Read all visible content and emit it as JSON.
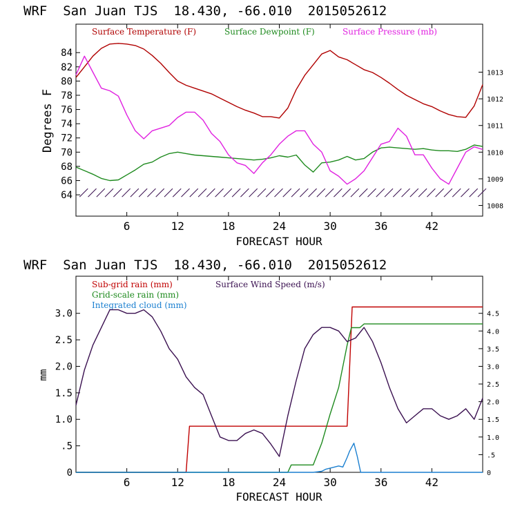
{
  "colors": {
    "axis": "#000000",
    "temperature": "#b00000",
    "dewpoint": "#1e8a1e",
    "pressure": "#e020e0",
    "wind_barbs": "#3a1050",
    "subgrid_rain": "#c00000",
    "gridscale_rain": "#1e8a1e",
    "integrated_cloud": "#1a7fd0",
    "wind_speed": "#3a1050"
  },
  "chart_data": [
    {
      "type": "line",
      "title": "WRF  San Juan TJS  18.430, -66.010  2015052612",
      "xlabel": "FORECAST HOUR",
      "ylabel": "Degrees F",
      "xlim": [
        0,
        48
      ],
      "ylim": [
        61,
        88
      ],
      "y2lim": [
        1007.6,
        1014.8
      ],
      "x_ticks": [
        "6",
        "12",
        "18",
        "24",
        "30",
        "36",
        "42"
      ],
      "x_tick_values": [
        6,
        12,
        18,
        24,
        30,
        36,
        42
      ],
      "y_ticks": [
        "64",
        "66",
        "68",
        "70",
        "72",
        "74",
        "76",
        "78",
        "80",
        "82",
        "84"
      ],
      "y_tick_values": [
        64,
        66,
        68,
        70,
        72,
        74,
        76,
        78,
        80,
        82,
        84
      ],
      "y2_ticks": [
        "1008",
        "1009",
        "1010",
        "1011",
        "1012",
        "1013"
      ],
      "y2_tick_values": [
        1008,
        1009,
        1010,
        1011,
        1012,
        1013
      ],
      "legend": [
        "Surface Temperature (F)",
        "Surface Dewpoint (F)",
        "Surface Pressure (mb)"
      ],
      "series": [
        {
          "name": "Surface Temperature (F)",
          "axis": "left",
          "x": [
            0,
            1,
            2,
            3,
            4,
            5,
            6,
            7,
            8,
            9,
            10,
            11,
            12,
            13,
            14,
            15,
            16,
            17,
            18,
            19,
            20,
            21,
            22,
            23,
            24,
            25,
            26,
            27,
            28,
            29,
            30,
            31,
            32,
            33,
            34,
            35,
            36,
            37,
            38,
            39,
            40,
            41,
            42,
            43,
            44,
            45,
            46,
            47,
            48
          ],
          "values": [
            80.5,
            82.0,
            83.5,
            84.6,
            85.2,
            85.3,
            85.2,
            85.0,
            84.5,
            83.6,
            82.5,
            81.2,
            80.0,
            79.4,
            79.0,
            78.6,
            78.2,
            77.6,
            77.0,
            76.4,
            75.9,
            75.5,
            75.0,
            75.0,
            74.8,
            76.2,
            78.8,
            80.8,
            82.3,
            83.8,
            84.3,
            83.4,
            83.0,
            82.3,
            81.6,
            81.2,
            80.5,
            79.7,
            78.8,
            78.0,
            77.4,
            76.8,
            76.4,
            75.8,
            75.3,
            75.0,
            74.9,
            76.5,
            79.5
          ]
        },
        {
          "name": "Surface Dewpoint (F)",
          "axis": "left",
          "x": [
            0,
            1,
            2,
            3,
            4,
            5,
            6,
            7,
            8,
            9,
            10,
            11,
            12,
            13,
            14,
            15,
            16,
            17,
            18,
            19,
            20,
            21,
            22,
            23,
            24,
            25,
            26,
            27,
            28,
            29,
            30,
            31,
            32,
            33,
            34,
            35,
            36,
            37,
            38,
            39,
            40,
            41,
            42,
            43,
            44,
            45,
            46,
            47,
            48
          ],
          "values": [
            67.9,
            67.4,
            66.9,
            66.3,
            66.0,
            66.1,
            66.8,
            67.5,
            68.3,
            68.6,
            69.3,
            69.8,
            70.0,
            69.8,
            69.6,
            69.5,
            69.4,
            69.3,
            69.2,
            69.1,
            69.0,
            68.9,
            69.0,
            69.2,
            69.5,
            69.3,
            69.6,
            68.2,
            67.2,
            68.5,
            68.6,
            68.9,
            69.4,
            68.9,
            69.1,
            70.0,
            70.6,
            70.7,
            70.6,
            70.5,
            70.4,
            70.5,
            70.3,
            70.2,
            70.2,
            70.1,
            70.4,
            71.0,
            70.8
          ]
        },
        {
          "name": "Surface Pressure (mb)",
          "axis": "right",
          "x": [
            0,
            1,
            2,
            3,
            4,
            5,
            6,
            7,
            8,
            9,
            10,
            11,
            12,
            13,
            14,
            15,
            16,
            17,
            18,
            19,
            20,
            21,
            22,
            23,
            24,
            25,
            26,
            27,
            28,
            29,
            30,
            31,
            32,
            33,
            34,
            35,
            36,
            37,
            38,
            39,
            40,
            41,
            42,
            43,
            44,
            45,
            46,
            47,
            48
          ],
          "values": [
            1012.9,
            1013.6,
            1013.0,
            1012.4,
            1012.3,
            1012.1,
            1011.4,
            1010.8,
            1010.5,
            1010.8,
            1010.9,
            1011.0,
            1011.3,
            1011.5,
            1011.5,
            1011.2,
            1010.7,
            1010.4,
            1009.9,
            1009.6,
            1009.5,
            1009.2,
            1009.6,
            1009.9,
            1010.3,
            1010.6,
            1010.8,
            1010.8,
            1010.3,
            1010.0,
            1009.3,
            1009.1,
            1008.8,
            1009.0,
            1009.3,
            1009.8,
            1010.3,
            1010.4,
            1010.9,
            1010.6,
            1009.9,
            1009.9,
            1009.4,
            1009.0,
            1008.8,
            1009.4,
            1010.0,
            1010.2,
            1010.1
          ]
        }
      ],
      "wind_barbs": {
        "x_start": 1,
        "x_end": 48,
        "y_value": 64
      }
    },
    {
      "type": "line",
      "title": "WRF  San Juan TJS  18.430, -66.010  2015052612",
      "xlabel": "FORECAST HOUR",
      "ylabel": "mm",
      "xlim": [
        0,
        48
      ],
      "ylim": [
        0,
        3.7
      ],
      "y2lim": [
        0,
        5.55
      ],
      "x_ticks": [
        "6",
        "12",
        "18",
        "24",
        "30",
        "36",
        "42"
      ],
      "x_tick_values": [
        6,
        12,
        18,
        24,
        30,
        36,
        42
      ],
      "y_ticks": [
        "0",
        ".5",
        "1.0",
        "1.5",
        "2.0",
        "2.5",
        "3.0"
      ],
      "y_tick_values": [
        0,
        0.5,
        1.0,
        1.5,
        2.0,
        2.5,
        3.0
      ],
      "y2_ticks": [
        "0",
        ".5",
        "1.0",
        "1.5",
        "2.0",
        "2.5",
        "3.0",
        "3.5",
        "4.0",
        "4.5"
      ],
      "y2_tick_values": [
        0,
        0.5,
        1.0,
        1.5,
        2.0,
        2.5,
        3.0,
        3.5,
        4.0,
        4.5
      ],
      "legend": [
        "Sub-grid rain (mm)",
        "Surface Wind Speed (m/s)",
        "Grid-scale rain (mm)",
        "Integrated cloud (mm)"
      ],
      "series": [
        {
          "name": "Sub-grid rain (mm)",
          "axis": "left",
          "x": [
            0,
            13,
            13.4,
            32,
            32.6,
            48
          ],
          "values": [
            0,
            0,
            0.87,
            0.87,
            3.12,
            3.12
          ]
        },
        {
          "name": "Grid-scale rain (mm)",
          "axis": "left",
          "x": [
            0,
            25,
            25.4,
            28,
            29,
            30,
            31,
            32,
            32.5,
            33.5,
            34,
            48
          ],
          "values": [
            0,
            0,
            0.14,
            0.14,
            0.55,
            1.1,
            1.6,
            2.4,
            2.73,
            2.73,
            2.8,
            2.8
          ]
        },
        {
          "name": "Integrated cloud (mm)",
          "axis": "left",
          "x": [
            0,
            27,
            28,
            29,
            29.5,
            30,
            31,
            31.5,
            32,
            32.3,
            32.8,
            33.2,
            33.6,
            48
          ],
          "values": [
            0,
            0,
            0,
            0.02,
            0.06,
            0.08,
            0.12,
            0.1,
            0.28,
            0.4,
            0.55,
            0.3,
            0,
            0
          ]
        },
        {
          "name": "Surface Wind Speed (m/s)",
          "axis": "right",
          "x": [
            0,
            1,
            2,
            3,
            4,
            5,
            6,
            7,
            8,
            9,
            10,
            11,
            12,
            13,
            14,
            15,
            16,
            17,
            18,
            19,
            20,
            21,
            22,
            23,
            24,
            25,
            26,
            27,
            28,
            29,
            30,
            31,
            32,
            33,
            34,
            35,
            36,
            37,
            38,
            39,
            40,
            41,
            42,
            43,
            44,
            45,
            46,
            47,
            48
          ],
          "values": [
            1.9,
            2.9,
            3.6,
            4.1,
            4.6,
            4.6,
            4.5,
            4.5,
            4.6,
            4.4,
            4.0,
            3.5,
            3.2,
            2.7,
            2.4,
            2.2,
            1.6,
            1.0,
            0.9,
            0.9,
            1.1,
            1.2,
            1.1,
            0.8,
            0.45,
            1.6,
            2.6,
            3.5,
            3.9,
            4.1,
            4.1,
            4.0,
            3.7,
            3.8,
            4.1,
            3.7,
            3.1,
            2.4,
            1.8,
            1.4,
            1.6,
            1.8,
            1.8,
            1.6,
            1.5,
            1.6,
            1.8,
            1.5,
            2.1
          ]
        }
      ]
    }
  ]
}
